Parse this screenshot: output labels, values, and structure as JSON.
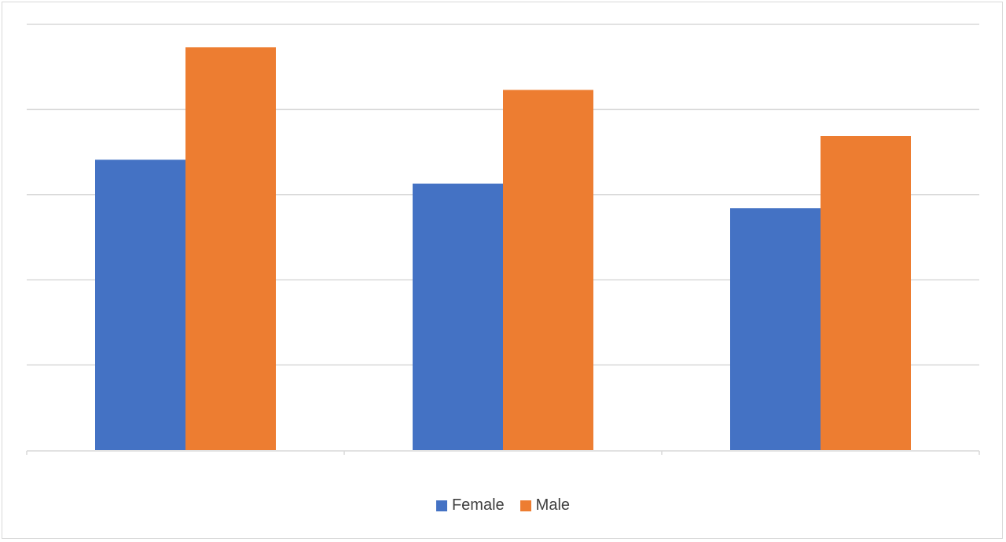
{
  "chart_data": {
    "type": "bar",
    "categories": [
      "",
      "",
      ""
    ],
    "series": [
      {
        "name": "Female",
        "values": [
          3.41,
          3.13,
          2.84
        ],
        "color": "#4472c4"
      },
      {
        "name": "Male",
        "values": [
          4.73,
          4.23,
          3.69
        ],
        "color": "#ed7d31"
      }
    ],
    "ylim": [
      0,
      5
    ],
    "ticks": [
      0,
      1,
      2,
      3,
      4,
      5
    ],
    "grid": true,
    "legend": "bottom"
  }
}
